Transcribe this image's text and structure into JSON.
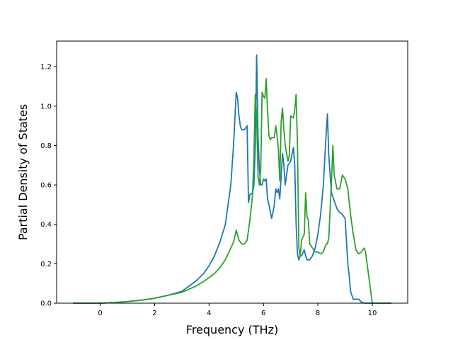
{
  "chart_data": {
    "type": "line",
    "xlabel": "Frequency (THz)",
    "ylabel": "Partial Density of States",
    "xlim": [
      -1.6,
      11.3
    ],
    "ylim": [
      0,
      1.33
    ],
    "xticks": [
      0,
      2,
      4,
      6,
      8,
      10
    ],
    "yticks": [
      0.0,
      0.2,
      0.4,
      0.6,
      0.8,
      1.0,
      1.2
    ],
    "grid": false,
    "series": [
      {
        "color": "#1f77b4",
        "x": [
          -1.0,
          0.0,
          0.5,
          1.0,
          1.5,
          2.0,
          2.5,
          3.0,
          3.5,
          3.8,
          4.0,
          4.2,
          4.4,
          4.6,
          4.7,
          4.8,
          4.9,
          5.0,
          5.05,
          5.1,
          5.15,
          5.2,
          5.3,
          5.4,
          5.45,
          5.5,
          5.6,
          5.65,
          5.7,
          5.75,
          5.8,
          5.85,
          5.9,
          5.95,
          6.0,
          6.05,
          6.1,
          6.15,
          6.2,
          6.3,
          6.35,
          6.4,
          6.45,
          6.5,
          6.55,
          6.6,
          6.7,
          6.75,
          6.8,
          6.85,
          6.9,
          7.0,
          7.1,
          7.15,
          7.2,
          7.25,
          7.3,
          7.35,
          7.4,
          7.5,
          7.55,
          7.6,
          7.7,
          7.8,
          7.9,
          8.0,
          8.1,
          8.2,
          8.3,
          8.35,
          8.4,
          8.45,
          8.5,
          8.6,
          8.7,
          8.8,
          8.9,
          9.0,
          9.1,
          9.15,
          9.2,
          9.3,
          9.4,
          9.5,
          9.6,
          9.7,
          9.8,
          10.0,
          10.7
        ],
        "y": [
          0.0,
          0.0,
          0.003,
          0.008,
          0.015,
          0.025,
          0.04,
          0.06,
          0.11,
          0.15,
          0.19,
          0.24,
          0.31,
          0.4,
          0.5,
          0.6,
          0.8,
          1.07,
          1.04,
          0.95,
          0.9,
          0.88,
          0.88,
          0.9,
          0.51,
          0.55,
          0.56,
          0.6,
          0.8,
          1.26,
          0.85,
          0.68,
          0.6,
          0.6,
          0.63,
          0.62,
          0.63,
          0.53,
          0.5,
          0.43,
          0.46,
          0.5,
          0.58,
          0.56,
          0.58,
          0.53,
          0.76,
          0.7,
          0.6,
          0.65,
          0.7,
          0.72,
          0.79,
          0.7,
          0.4,
          0.25,
          0.22,
          0.24,
          0.24,
          0.27,
          0.24,
          0.22,
          0.22,
          0.24,
          0.28,
          0.35,
          0.45,
          0.6,
          0.85,
          0.96,
          0.75,
          0.65,
          0.56,
          0.52,
          0.48,
          0.46,
          0.45,
          0.43,
          0.2,
          0.14,
          0.06,
          0.02,
          0.02,
          0.02,
          0.005,
          0.0,
          0.0,
          0.0,
          0.0
        ]
      },
      {
        "color": "#2ca02c",
        "x": [
          -1.0,
          0.0,
          0.5,
          1.0,
          1.5,
          2.0,
          2.5,
          3.0,
          3.5,
          3.8,
          4.0,
          4.2,
          4.4,
          4.6,
          4.7,
          4.8,
          4.9,
          5.0,
          5.1,
          5.2,
          5.3,
          5.4,
          5.5,
          5.6,
          5.65,
          5.7,
          5.75,
          5.8,
          5.85,
          5.9,
          5.95,
          6.0,
          6.05,
          6.1,
          6.15,
          6.2,
          6.25,
          6.3,
          6.4,
          6.45,
          6.5,
          6.55,
          6.6,
          6.65,
          6.7,
          6.75,
          6.8,
          6.9,
          6.95,
          7.0,
          7.1,
          7.15,
          7.2,
          7.25,
          7.3,
          7.35,
          7.4,
          7.5,
          7.55,
          7.6,
          7.65,
          7.7,
          7.8,
          7.9,
          8.0,
          8.1,
          8.2,
          8.3,
          8.35,
          8.4,
          8.5,
          8.55,
          8.6,
          8.7,
          8.8,
          8.9,
          9.0,
          9.1,
          9.2,
          9.3,
          9.4,
          9.5,
          9.6,
          9.7,
          9.75,
          10.0,
          10.7
        ],
        "y": [
          0.0,
          0.0,
          0.003,
          0.008,
          0.015,
          0.025,
          0.04,
          0.055,
          0.085,
          0.11,
          0.13,
          0.15,
          0.18,
          0.22,
          0.25,
          0.28,
          0.31,
          0.37,
          0.32,
          0.3,
          0.3,
          0.32,
          0.42,
          0.55,
          0.75,
          1.06,
          0.95,
          0.65,
          0.6,
          0.68,
          1.07,
          1.05,
          1.04,
          1.14,
          0.98,
          0.85,
          0.83,
          0.84,
          0.84,
          0.9,
          0.85,
          0.78,
          0.62,
          0.92,
          0.99,
          0.88,
          0.8,
          0.72,
          0.75,
          0.95,
          0.94,
          0.98,
          1.06,
          0.8,
          0.28,
          0.24,
          0.32,
          0.35,
          0.56,
          0.44,
          0.42,
          0.3,
          0.28,
          0.26,
          0.26,
          0.25,
          0.26,
          0.3,
          0.3,
          0.33,
          0.62,
          0.8,
          0.65,
          0.58,
          0.58,
          0.65,
          0.63,
          0.58,
          0.45,
          0.35,
          0.27,
          0.25,
          0.26,
          0.28,
          0.26,
          0.0,
          0.0
        ]
      }
    ]
  }
}
